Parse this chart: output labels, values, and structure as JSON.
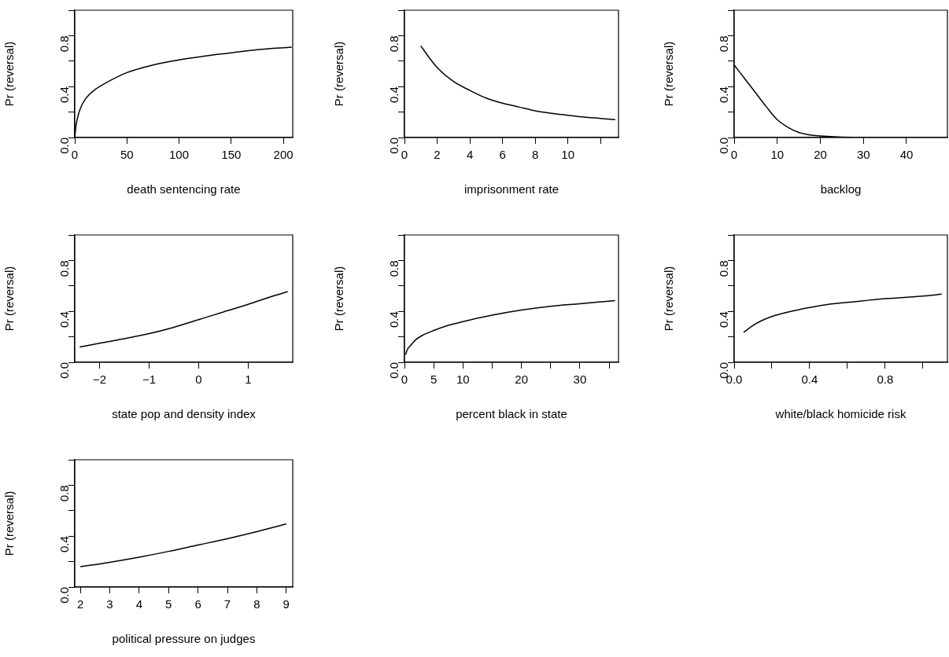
{
  "chart_data": [
    {
      "type": "line",
      "xlabel": "death sentencing rate",
      "ylabel": "Pr (reversal)",
      "color": "#000000",
      "marker": "none",
      "xlim": [
        0,
        209
      ],
      "ylim": [
        0,
        1
      ],
      "xticks": [
        0,
        50,
        100,
        150,
        200
      ],
      "yticks": [
        {
          "value": 0,
          "label": "0.0"
        },
        {
          "value": 0.2,
          "label": null
        },
        {
          "value": 0.4,
          "label": "0.4"
        },
        {
          "value": 0.6,
          "label": null
        },
        {
          "value": 0.8,
          "label": "0.8"
        },
        {
          "value": 1,
          "label": null
        }
      ],
      "x": [
        0,
        1,
        2,
        5,
        10,
        20,
        30,
        50,
        75,
        100,
        125,
        150,
        175,
        208
      ],
      "values": [
        0,
        0.08,
        0.13,
        0.22,
        0.3,
        0.38,
        0.43,
        0.51,
        0.57,
        0.61,
        0.64,
        0.665,
        0.69,
        0.71
      ]
    },
    {
      "type": "line",
      "xlabel": "imprisonment rate",
      "ylabel": "Pr (reversal)",
      "color": "#000000",
      "marker": "none",
      "xlim": [
        0,
        13.1
      ],
      "ylim": [
        0,
        1
      ],
      "xticks": [
        0,
        2,
        4,
        6,
        8,
        10,
        {
          "value": 12,
          "label": null
        }
      ],
      "yticks": [
        {
          "value": 0,
          "label": "0.0"
        },
        {
          "value": 0.2,
          "label": null
        },
        {
          "value": 0.4,
          "label": "0.4"
        },
        {
          "value": 0.6,
          "label": null
        },
        {
          "value": 0.8,
          "label": "0.8"
        },
        {
          "value": 1,
          "label": null
        }
      ],
      "x": [
        1,
        1.5,
        2,
        3,
        4,
        5,
        6,
        7,
        8,
        9,
        10,
        11,
        12,
        12.9
      ],
      "values": [
        0.72,
        0.63,
        0.55,
        0.44,
        0.37,
        0.31,
        0.27,
        0.24,
        0.21,
        0.19,
        0.175,
        0.16,
        0.15,
        0.14
      ]
    },
    {
      "type": "line",
      "xlabel": "backlog",
      "ylabel": "Pr (reversal)",
      "color": "#000000",
      "marker": "none",
      "xlim": [
        0,
        49.5
      ],
      "ylim": [
        0,
        1
      ],
      "xticks": [
        0,
        10,
        20,
        30,
        40
      ],
      "yticks": [
        {
          "value": 0,
          "label": "0.0"
        },
        {
          "value": 0.2,
          "label": null
        },
        {
          "value": 0.4,
          "label": "0.4"
        },
        {
          "value": 0.6,
          "label": null
        },
        {
          "value": 0.8,
          "label": "0.8"
        },
        {
          "value": 1,
          "label": null
        }
      ],
      "x": [
        0,
        2.5,
        5,
        7.5,
        10,
        12.5,
        15,
        17.5,
        20,
        25,
        30,
        40,
        49.5
      ],
      "values": [
        0.57,
        0.46,
        0.35,
        0.24,
        0.14,
        0.08,
        0.04,
        0.02,
        0.012,
        0.003,
        0,
        0,
        0
      ]
    },
    {
      "type": "line",
      "xlabel": "state pop and density index",
      "ylabel": "Pr (reversal)",
      "color": "#000000",
      "marker": "none",
      "xlim": [
        -2.5,
        1.9
      ],
      "ylim": [
        0,
        1
      ],
      "xticks": [
        {
          "value": -2,
          "label": "−2"
        },
        {
          "value": -1,
          "label": "−1"
        },
        0,
        1
      ],
      "yticks": [
        {
          "value": 0,
          "label": "0.0"
        },
        {
          "value": 0.2,
          "label": null
        },
        {
          "value": 0.4,
          "label": "0.4"
        },
        {
          "value": 0.6,
          "label": null
        },
        {
          "value": 0.8,
          "label": "0.8"
        },
        {
          "value": 1,
          "label": null
        }
      ],
      "x": [
        -2.4,
        -2,
        -1.5,
        -1,
        -0.5,
        0,
        0.5,
        1,
        1.5,
        1.8
      ],
      "values": [
        0.12,
        0.15,
        0.185,
        0.225,
        0.275,
        0.335,
        0.395,
        0.455,
        0.52,
        0.555
      ]
    },
    {
      "type": "line",
      "xlabel": "percent black in state",
      "ylabel": "Pr (reversal)",
      "color": "#000000",
      "marker": "none",
      "xlim": [
        0,
        36.6
      ],
      "ylim": [
        0,
        1
      ],
      "xticks": [
        0,
        5,
        10,
        {
          "value": 15,
          "label": null
        },
        20,
        {
          "value": 25,
          "label": null
        },
        30,
        {
          "value": 35,
          "label": null
        }
      ],
      "yticks": [
        {
          "value": 0,
          "label": "0.0"
        },
        {
          "value": 0.2,
          "label": null
        },
        {
          "value": 0.4,
          "label": "0.4"
        },
        {
          "value": 0.6,
          "label": null
        },
        {
          "value": 0.8,
          "label": "0.8"
        },
        {
          "value": 1,
          "label": null
        }
      ],
      "x": [
        0.2,
        0.5,
        1,
        2,
        3,
        5,
        7.5,
        10,
        15,
        20,
        25,
        30,
        36
      ],
      "values": [
        0.06,
        0.1,
        0.13,
        0.18,
        0.21,
        0.25,
        0.29,
        0.32,
        0.37,
        0.41,
        0.44,
        0.46,
        0.485
      ]
    },
    {
      "type": "line",
      "xlabel": "white/black homicide risk",
      "ylabel": "Pr (reversal)",
      "color": "#000000",
      "marker": "none",
      "xlim": [
        0,
        1.13
      ],
      "ylim": [
        0,
        1
      ],
      "xticks": [
        {
          "value": 0,
          "label": "0.0"
        },
        {
          "value": 0.2,
          "label": null
        },
        0.4,
        {
          "value": 0.6,
          "label": null
        },
        0.8,
        {
          "value": 1,
          "label": null
        }
      ],
      "yticks": [
        {
          "value": 0,
          "label": "0.0"
        },
        {
          "value": 0.2,
          "label": null
        },
        {
          "value": 0.4,
          "label": "0.4"
        },
        {
          "value": 0.6,
          "label": null
        },
        {
          "value": 0.8,
          "label": "0.8"
        },
        {
          "value": 1,
          "label": null
        }
      ],
      "x": [
        0.05,
        0.1,
        0.15,
        0.2,
        0.3,
        0.4,
        0.5,
        0.6,
        0.8,
        1,
        1.1
      ],
      "values": [
        0.235,
        0.29,
        0.33,
        0.36,
        0.4,
        0.43,
        0.455,
        0.47,
        0.5,
        0.52,
        0.535
      ]
    },
    {
      "type": "line",
      "xlabel": "political pressure on judges",
      "ylabel": "Pr (reversal)",
      "color": "#000000",
      "marker": "none",
      "xlim": [
        1.81,
        9.22
      ],
      "ylim": [
        0,
        1
      ],
      "xticks": [
        2,
        3,
        4,
        5,
        6,
        7,
        8,
        9
      ],
      "yticks": [
        {
          "value": 0,
          "label": "0.0"
        },
        {
          "value": 0.2,
          "label": null
        },
        {
          "value": 0.4,
          "label": "0.4"
        },
        {
          "value": 0.6,
          "label": null
        },
        {
          "value": 0.8,
          "label": "0.8"
        },
        {
          "value": 1,
          "label": null
        }
      ],
      "x": [
        2,
        3,
        4,
        5,
        6,
        7,
        8,
        9
      ],
      "values": [
        0.16,
        0.195,
        0.235,
        0.28,
        0.33,
        0.38,
        0.435,
        0.495
      ]
    }
  ]
}
